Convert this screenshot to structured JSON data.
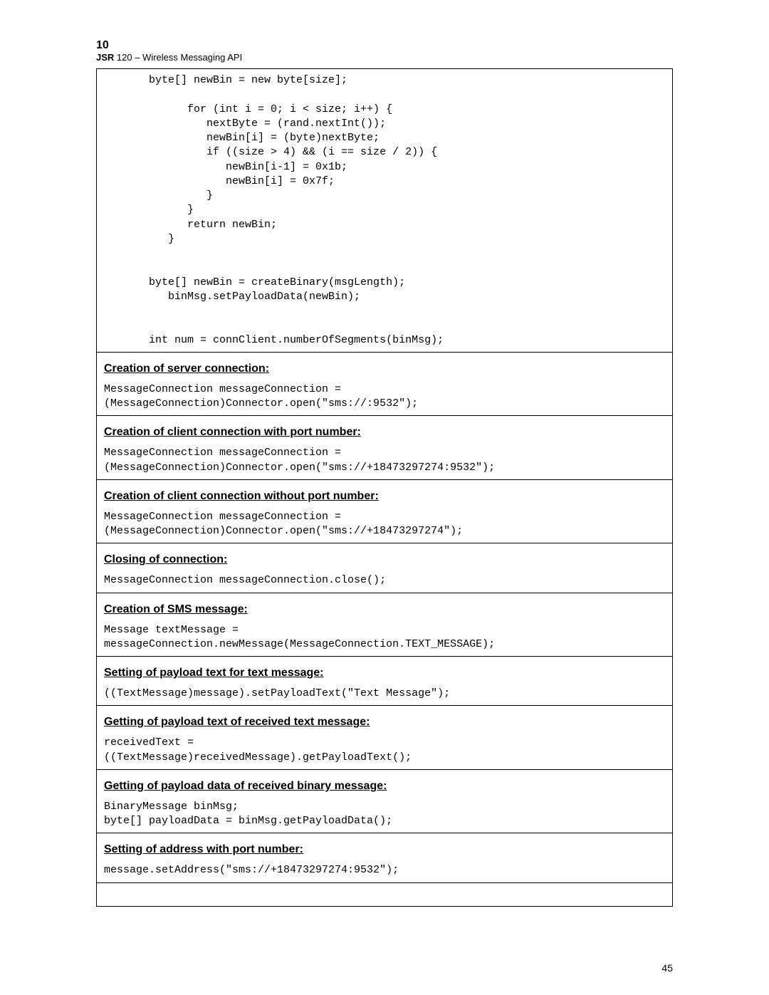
{
  "header": {
    "page_number": "10",
    "jsr_label": "JSR",
    "title_rest": " 120 – Wireless Messaging API"
  },
  "footer": {
    "page": "45"
  },
  "cells": [
    {
      "heading": null,
      "code": "       byte[] newBin = new byte[size];\n\n             for (int i = 0; i < size; i++) {\n                nextByte = (rand.nextInt());\n                newBin[i] = (byte)nextByte;\n                if ((size > 4) && (i == size / 2)) {\n                   newBin[i-1] = 0x1b;\n                   newBin[i] = 0x7f;\n                }\n             }\n             return newBin;\n          }\n\n\n       byte[] newBin = createBinary(msgLength);\n          binMsg.setPayloadData(newBin);\n\n\n       int num = connClient.numberOfSegments(binMsg);"
    },
    {
      "heading": "Creation of server connection:",
      "code": "MessageConnection messageConnection =\n(MessageConnection)Connector.open(\"sms://:9532\");"
    },
    {
      "heading": "Creation of client connection with port number:",
      "code": "MessageConnection messageConnection =\n(MessageConnection)Connector.open(\"sms://+18473297274:9532\");"
    },
    {
      "heading": "Creation of client connection without port number:",
      "code": "MessageConnection messageConnection =\n(MessageConnection)Connector.open(\"sms://+18473297274\");"
    },
    {
      "heading": "Closing of connection:",
      "code": "MessageConnection messageConnection.close();"
    },
    {
      "heading": "Creation of SMS message:",
      "code": "Message textMessage =\nmessageConnection.newMessage(MessageConnection.TEXT_MESSAGE);"
    },
    {
      "heading": "Setting of payload text for text message:",
      "code": "((TextMessage)message).setPayloadText(\"Text Message\");"
    },
    {
      "heading": "Getting of payload text of received text message:",
      "code": "receivedText =\n((TextMessage)receivedMessage).getPayloadText();"
    },
    {
      "heading": "Getting of payload data of received binary message:",
      "code": "BinaryMessage binMsg;\nbyte[] payloadData = binMsg.getPayloadData();"
    },
    {
      "heading": "Setting of address with port number:",
      "code": "message.setAddress(\"sms://+18473297274:9532\");\n"
    },
    {
      "heading": null,
      "code": " "
    }
  ]
}
